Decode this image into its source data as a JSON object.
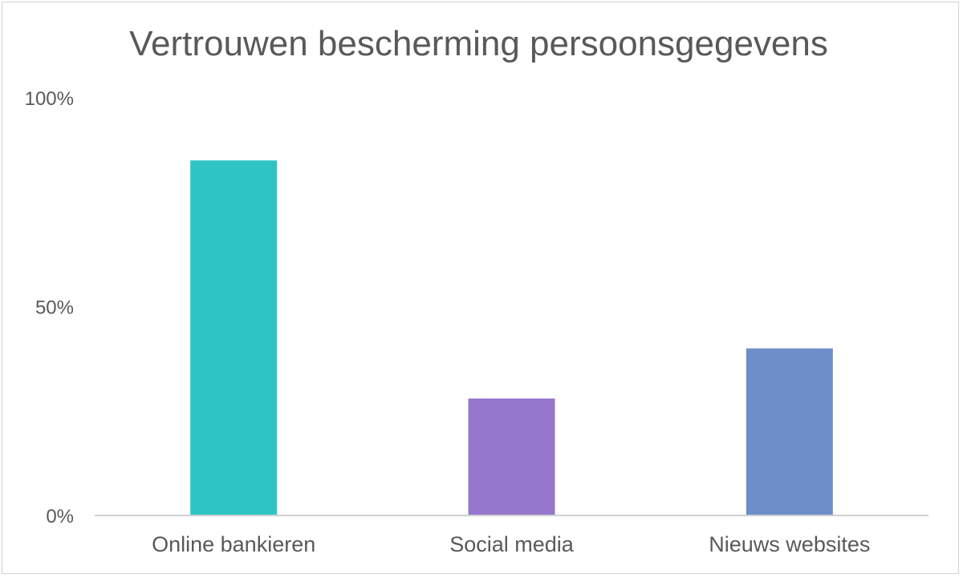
{
  "chart_data": {
    "type": "bar",
    "title": "Vertrouwen bescherming persoonsgegevens",
    "xlabel": "",
    "ylabel": "",
    "categories": [
      "Online bankieren",
      "Social media",
      "Nieuws websites"
    ],
    "values": [
      85,
      28,
      40
    ],
    "colors": [
      "#2fc4c4",
      "#9477cb",
      "#6d8ec9"
    ],
    "ylim": [
      0,
      100
    ],
    "yticks": [
      "0%",
      "50%",
      "100%"
    ],
    "ytick_values": [
      0,
      50,
      100
    ],
    "grid": false,
    "legend": "none"
  }
}
